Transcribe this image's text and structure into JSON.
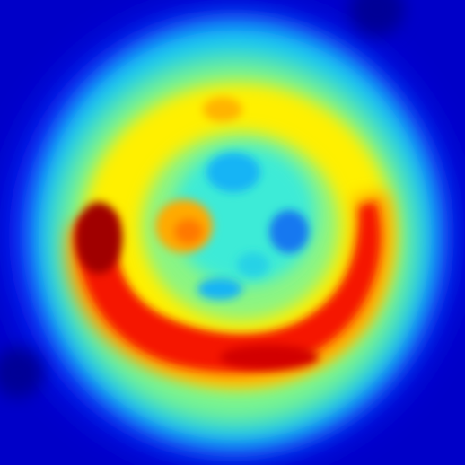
{
  "image": {
    "kind": "pseudocolor intensity map",
    "colormap": "jet",
    "colors": {
      "background": "#0000c8",
      "outer_blue": "#0a28ff",
      "cyan": "#14c8f5",
      "aqua": "#3cebd7",
      "yellow": "#fff000",
      "orange": "#ff9600",
      "red": "#f51400",
      "dark_red": "#a00000"
    },
    "regions": [
      {
        "name": "background",
        "color_key": "background"
      },
      {
        "name": "halo",
        "color_key": "cyan"
      },
      {
        "name": "ring",
        "color_key": "yellow"
      },
      {
        "name": "crescent",
        "color_key": "red"
      },
      {
        "name": "crescent-core",
        "color_key": "dark_red"
      },
      {
        "name": "inner-disc",
        "color_key": "aqua"
      },
      {
        "name": "inner-spots",
        "color_key": "cyan"
      },
      {
        "name": "inner-blob",
        "color_key": "orange"
      }
    ]
  }
}
